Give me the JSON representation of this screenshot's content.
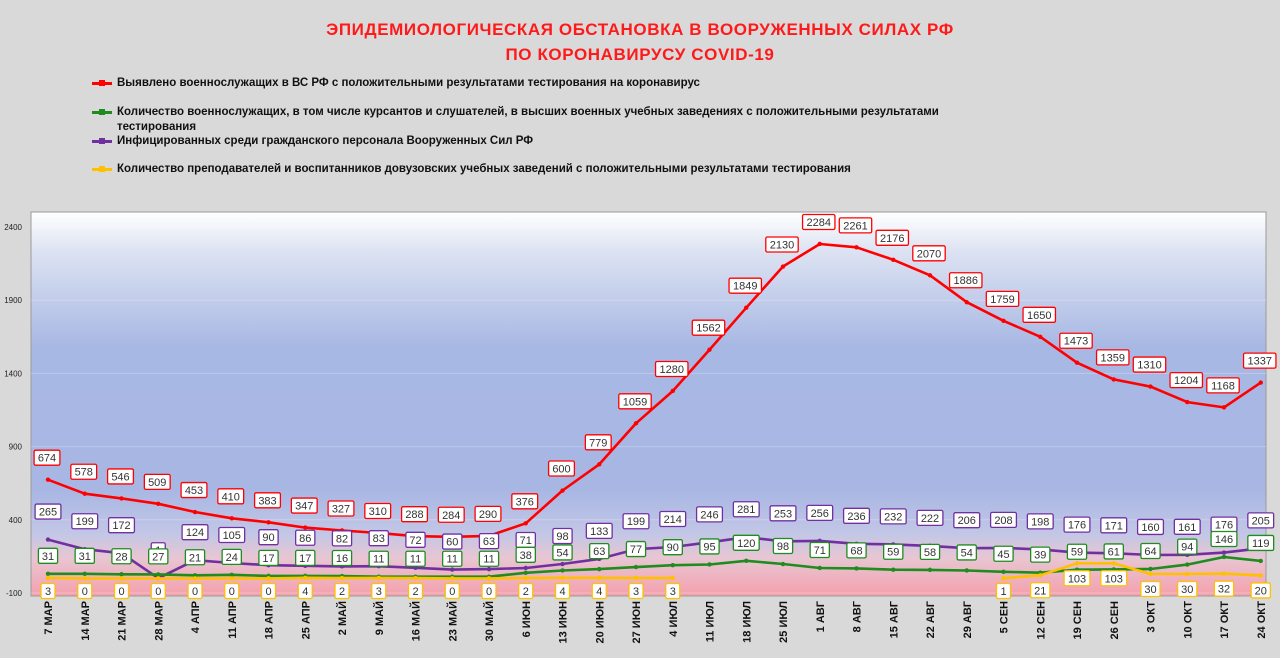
{
  "title": {
    "line1": "ЭПИДЕМИОЛОГИЧЕСКАЯ ОБСТАНОВКА В ВООРУЖЕННЫХ СИЛАХ РФ",
    "line2": "ПО КОРОНАВИРУСУ COVID-19"
  },
  "legend": [
    {
      "label": "Выявлено военнослужащих в ВС РФ с положительными результатами тестирования на коронавирус",
      "color": "#ff0000"
    },
    {
      "label": "Количество военнослужащих, в том числе курсантов и слушателей, в высших военных учебных заведениях с положительными результатами тестирования",
      "color": "#1e8c1e"
    },
    {
      "label": "Инфицированных среди гражданского персонала Вооруженных Сил РФ",
      "color": "#7030a0"
    },
    {
      "label": "Количество преподавателей и воспитанников довузовских учебных заведений с положительными результатами тестирования",
      "color": "#ffc000"
    }
  ],
  "chart_data": {
    "type": "line",
    "categories": [
      "7 МАР",
      "14 МАР",
      "21 МАР",
      "28 МАР",
      "4 АПР",
      "11 АПР",
      "18 АПР",
      "25 АПР",
      "2 МАЙ",
      "9 МАЙ",
      "16 МАЙ",
      "23 МАЙ",
      "30 МАЙ",
      "6 ИЮН",
      "13 ИЮН",
      "20 ИЮН",
      "27 ИЮН",
      "4 ИЮЛ",
      "11 ИЮЛ",
      "18 ИЮЛ",
      "25 ИЮЛ",
      "1 АВГ",
      "8 АВГ",
      "15 АВГ",
      "22 АВГ",
      "29 АВГ",
      "5 СЕН",
      "12 СЕН",
      "19 СЕН",
      "26 СЕН",
      "3 ОКТ",
      "10 ОКТ",
      "17 ОКТ",
      "24 ОКТ"
    ],
    "ylim": [
      -100,
      2400
    ],
    "yticks": [
      -100,
      400,
      900,
      1400,
      1900,
      2400
    ],
    "series": [
      {
        "color": "#ff0000",
        "values": [
          674,
          578,
          546,
          509,
          453,
          410,
          383,
          347,
          327,
          310,
          288,
          284,
          290,
          376,
          600,
          779,
          1059,
          1280,
          1562,
          1849,
          2130,
          2284,
          2261,
          2176,
          2070,
          1886,
          1759,
          1650,
          1473,
          1359,
          1310,
          1204,
          1168,
          1337
        ]
      },
      {
        "color": "#7030a0",
        "values": [
          265,
          199,
          172,
          1,
          124,
          105,
          90,
          86,
          82,
          83,
          72,
          60,
          63,
          71,
          98,
          133,
          199,
          214,
          246,
          281,
          253,
          256,
          236,
          232,
          222,
          206,
          208,
          198,
          176,
          171,
          160,
          161,
          176,
          205
        ]
      },
      {
        "color": "#1e8c1e",
        "values": [
          31,
          31,
          28,
          27,
          21,
          24,
          17,
          17,
          16,
          11,
          11,
          11,
          11,
          38,
          54,
          63,
          77,
          90,
          95,
          120,
          98,
          71,
          68,
          59,
          58,
          54,
          45,
          39,
          59,
          61,
          64,
          94,
          146,
          119
        ]
      },
      {
        "color": "#ffc000",
        "values": [
          3,
          0,
          0,
          0,
          0,
          0,
          0,
          4,
          2,
          3,
          2,
          0,
          0,
          2,
          4,
          4,
          3,
          3,
          null,
          null,
          null,
          null,
          null,
          null,
          null,
          null,
          1,
          21,
          103,
          103,
          30,
          30,
          32,
          20
        ]
      }
    ]
  }
}
